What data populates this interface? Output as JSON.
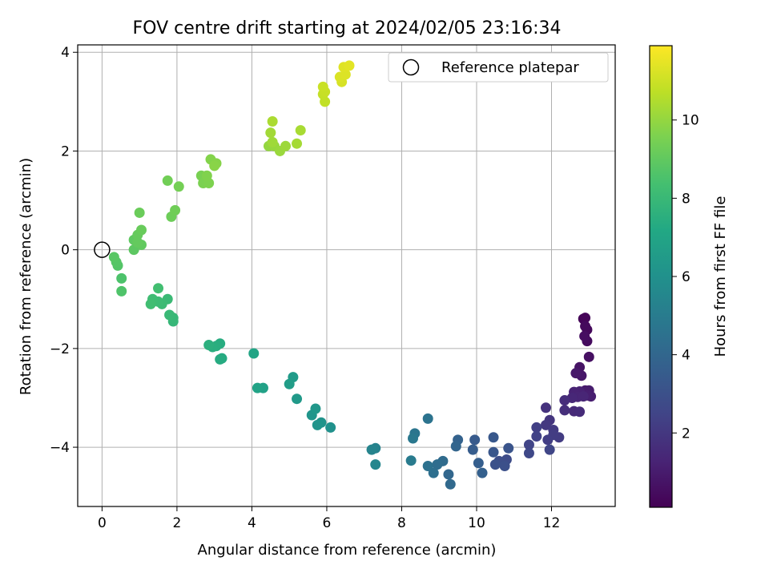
{
  "chart_data": {
    "type": "scatter",
    "title": "FOV centre drift starting at 2024/02/05 23:16:34",
    "xlabel": "Angular distance from reference (arcmin)",
    "ylabel": "Rotation from reference (arcmin)",
    "xlim": [
      -0.65,
      13.7
    ],
    "ylim": [
      -5.2,
      4.15
    ],
    "xticks": [
      0,
      2,
      4,
      6,
      8,
      10,
      12
    ],
    "yticks": [
      -4,
      -2,
      0,
      2,
      4
    ],
    "grid": true,
    "legend": {
      "placement": "top-right",
      "entries": [
        "Reference platepar"
      ]
    },
    "reference_point": {
      "x": 0,
      "y": 0
    },
    "colorbar": {
      "label": "Hours from first FF file",
      "ticks": [
        2,
        4,
        6,
        8,
        10
      ],
      "range": [
        0.1,
        11.9
      ],
      "colormap": "viridis"
    },
    "points": [
      [
        12.85,
        -1.4,
        0.2
      ],
      [
        12.9,
        -1.38,
        0.25
      ],
      [
        12.95,
        -1.62,
        0.35
      ],
      [
        12.9,
        -1.55,
        0.4
      ],
      [
        12.95,
        -1.85,
        0.45
      ],
      [
        12.88,
        -1.75,
        0.55
      ],
      [
        13.0,
        -2.17,
        0.6
      ],
      [
        12.75,
        -2.38,
        0.7
      ],
      [
        12.8,
        -2.55,
        0.8
      ],
      [
        12.65,
        -2.5,
        0.9
      ],
      [
        12.9,
        -2.85,
        0.95
      ],
      [
        13.0,
        -2.85,
        1.0
      ],
      [
        13.05,
        -2.97,
        1.05
      ],
      [
        12.95,
        -2.95,
        1.1
      ],
      [
        12.75,
        -2.87,
        1.2
      ],
      [
        12.6,
        -2.88,
        1.25
      ],
      [
        12.7,
        -2.98,
        1.3
      ],
      [
        12.85,
        -2.97,
        1.35
      ],
      [
        12.55,
        -3.0,
        1.4
      ],
      [
        12.6,
        -3.27,
        1.5
      ],
      [
        12.75,
        -3.28,
        1.55
      ],
      [
        12.35,
        -3.05,
        1.6
      ],
      [
        12.35,
        -3.25,
        1.7
      ],
      [
        11.85,
        -3.2,
        1.8
      ],
      [
        11.95,
        -3.45,
        1.9
      ],
      [
        11.85,
        -3.55,
        2.0
      ],
      [
        12.05,
        -3.65,
        2.1
      ],
      [
        12.2,
        -3.8,
        2.15
      ],
      [
        12.05,
        -3.75,
        2.2
      ],
      [
        11.9,
        -3.85,
        2.25
      ],
      [
        11.6,
        -3.6,
        2.3
      ],
      [
        11.6,
        -3.78,
        2.4
      ],
      [
        11.4,
        -3.95,
        2.5
      ],
      [
        11.95,
        -4.05,
        2.55
      ],
      [
        11.4,
        -4.12,
        2.65
      ],
      [
        10.8,
        -4.25,
        2.8
      ],
      [
        10.6,
        -4.28,
        2.9
      ],
      [
        10.75,
        -4.38,
        3.0
      ],
      [
        10.5,
        -4.35,
        3.05
      ],
      [
        10.85,
        -4.02,
        3.15
      ],
      [
        10.45,
        -4.1,
        3.25
      ],
      [
        10.45,
        -3.8,
        3.3
      ],
      [
        9.95,
        -3.85,
        3.4
      ],
      [
        9.9,
        -4.05,
        3.5
      ],
      [
        10.05,
        -4.32,
        3.6
      ],
      [
        10.15,
        -4.52,
        3.7
      ],
      [
        9.5,
        -3.85,
        3.8
      ],
      [
        9.45,
        -3.98,
        3.9
      ],
      [
        9.25,
        -4.55,
        4.0
      ],
      [
        9.3,
        -4.75,
        4.1
      ],
      [
        9.1,
        -4.28,
        4.2
      ],
      [
        8.95,
        -4.35,
        4.3
      ],
      [
        8.85,
        -4.52,
        4.4
      ],
      [
        8.7,
        -4.38,
        4.5
      ],
      [
        8.7,
        -3.42,
        4.6
      ],
      [
        8.35,
        -3.72,
        4.7
      ],
      [
        8.3,
        -3.82,
        4.8
      ],
      [
        8.25,
        -4.27,
        4.95
      ],
      [
        7.3,
        -4.02,
        5.3
      ],
      [
        7.2,
        -4.05,
        5.4
      ],
      [
        7.3,
        -4.35,
        5.5
      ],
      [
        6.1,
        -3.6,
        6.0
      ],
      [
        5.85,
        -3.5,
        6.1
      ],
      [
        5.75,
        -3.55,
        6.15
      ],
      [
        5.6,
        -3.35,
        6.2
      ],
      [
        5.7,
        -3.22,
        6.3
      ],
      [
        5.2,
        -3.02,
        6.4
      ],
      [
        5.1,
        -2.58,
        6.5
      ],
      [
        5.0,
        -2.72,
        6.6
      ],
      [
        4.3,
        -2.8,
        6.8
      ],
      [
        4.15,
        -2.8,
        6.9
      ],
      [
        4.05,
        -2.1,
        7.0
      ],
      [
        3.2,
        -2.2,
        7.3
      ],
      [
        3.15,
        -2.22,
        7.35
      ],
      [
        3.15,
        -1.9,
        7.4
      ],
      [
        3.05,
        -1.95,
        7.45
      ],
      [
        2.95,
        -1.97,
        7.5
      ],
      [
        2.85,
        -1.93,
        7.55
      ],
      [
        1.9,
        -1.45,
        7.9
      ],
      [
        1.9,
        -1.38,
        7.95
      ],
      [
        1.8,
        -1.32,
        8.0
      ],
      [
        1.75,
        -1.0,
        8.05
      ],
      [
        1.6,
        -1.1,
        8.1
      ],
      [
        1.5,
        -1.05,
        8.15
      ],
      [
        1.35,
        -1.0,
        8.2
      ],
      [
        1.3,
        -1.1,
        8.25
      ],
      [
        1.5,
        -0.78,
        8.3
      ],
      [
        0.52,
        -0.58,
        8.55
      ],
      [
        0.52,
        -0.84,
        8.6
      ],
      [
        0.42,
        -0.32,
        8.7
      ],
      [
        0.38,
        -0.25,
        8.75
      ],
      [
        0.32,
        -0.15,
        8.8
      ],
      [
        0.85,
        0.0,
        8.9
      ],
      [
        0.85,
        0.2,
        8.95
      ],
      [
        1.05,
        0.1,
        9.0
      ],
      [
        0.95,
        0.15,
        9.05
      ],
      [
        0.95,
        0.3,
        9.1
      ],
      [
        1.05,
        0.4,
        9.15
      ],
      [
        1.0,
        0.75,
        9.2
      ],
      [
        1.85,
        0.67,
        9.25
      ],
      [
        1.95,
        0.8,
        9.3
      ],
      [
        1.75,
        1.4,
        9.35
      ],
      [
        2.05,
        1.28,
        9.4
      ],
      [
        2.65,
        1.5,
        9.5
      ],
      [
        2.7,
        1.35,
        9.55
      ],
      [
        2.85,
        1.35,
        9.6
      ],
      [
        2.8,
        1.5,
        9.65
      ],
      [
        2.9,
        1.83,
        9.7
      ],
      [
        3.05,
        1.75,
        9.75
      ],
      [
        3.0,
        1.7,
        9.8
      ],
      [
        4.45,
        2.1,
        10.0
      ],
      [
        4.6,
        2.1,
        10.05
      ],
      [
        4.75,
        2.0,
        10.1
      ],
      [
        4.9,
        2.1,
        10.15
      ],
      [
        4.55,
        2.18,
        10.2
      ],
      [
        4.5,
        2.37,
        10.25
      ],
      [
        5.2,
        2.15,
        10.3
      ],
      [
        5.3,
        2.42,
        10.35
      ],
      [
        4.55,
        2.6,
        10.4
      ],
      [
        5.95,
        3.0,
        10.8
      ],
      [
        5.9,
        3.15,
        10.85
      ],
      [
        5.95,
        3.2,
        10.9
      ],
      [
        5.9,
        3.3,
        10.95
      ],
      [
        6.4,
        3.4,
        11.2
      ],
      [
        6.35,
        3.5,
        11.25
      ],
      [
        6.5,
        3.55,
        11.3
      ],
      [
        6.45,
        3.7,
        11.35
      ],
      [
        6.6,
        3.73,
        11.4
      ]
    ]
  }
}
